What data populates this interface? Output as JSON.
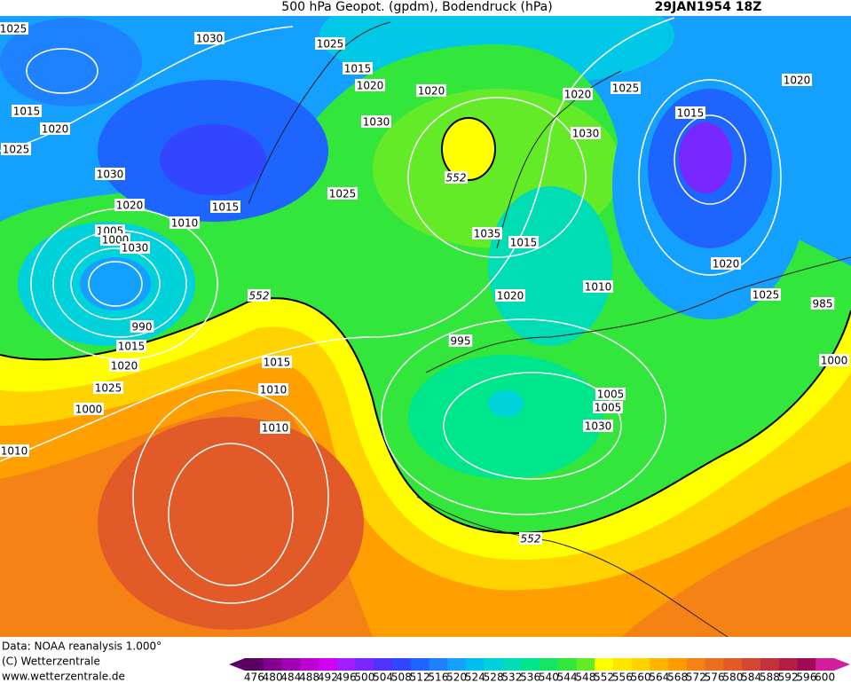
{
  "header": {
    "title": "500 hPa Geopot. (gpdm), Bodendruck (hPa)",
    "date": "29JAN1954 18Z"
  },
  "isobar_labels": [
    1025,
    1030,
    1025,
    1015,
    1020,
    1020,
    1020,
    1025,
    1020,
    1015,
    1020,
    1030,
    1030,
    1015,
    1025,
    1030,
    1025,
    1020,
    1015,
    1010,
    1005,
    1000,
    1030,
    1035,
    1015,
    1020,
    1010,
    1025,
    1020,
    985,
    990,
    1015,
    995,
    1020,
    1015,
    1000,
    1025,
    1010,
    1005,
    1005,
    1000,
    1030,
    1010,
    1010
  ],
  "geopotential_labels": [
    552,
    552,
    552
  ],
  "footer": {
    "lines": [
      "Data: NOAA reanalysis 1.000°",
      "(C) Wetterzentrale",
      "www.wetterzentrale.de"
    ]
  },
  "colorbar": {
    "labels": [
      476,
      480,
      484,
      488,
      492,
      496,
      500,
      504,
      508,
      512,
      516,
      520,
      524,
      528,
      532,
      536,
      540,
      544,
      548,
      552,
      556,
      560,
      564,
      568,
      572,
      576,
      580,
      584,
      588,
      592,
      596,
      600
    ],
    "colors": [
      "#5a0064",
      "#82008c",
      "#a000b4",
      "#be00d2",
      "#d200f0",
      "#a01eff",
      "#7828ff",
      "#5032ff",
      "#3246ff",
      "#1e64ff",
      "#1e82ff",
      "#14a0ff",
      "#00bef0",
      "#00d2dc",
      "#00dcb4",
      "#00e68c",
      "#14e664",
      "#32e63c",
      "#64eb28",
      "#ffff00",
      "#ffe600",
      "#ffd200",
      "#ffb400",
      "#ff9b00",
      "#f58214",
      "#eb6e1e",
      "#e15a28",
      "#d24632",
      "#c3323c",
      "#b41e46",
      "#a00a50",
      "#d21ea0"
    ]
  }
}
